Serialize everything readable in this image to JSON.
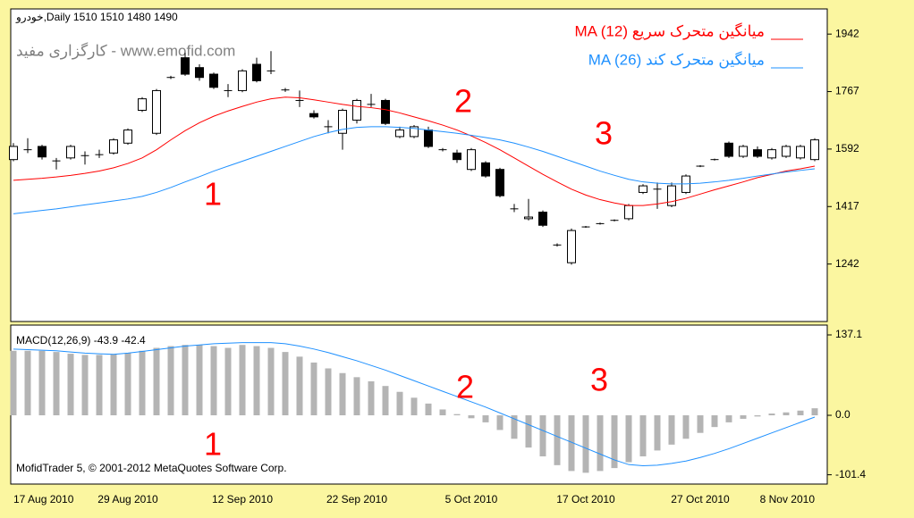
{
  "chart_data": [
    {
      "type": "candlestick",
      "header": "خودرو,Daily  1510 1510 1480 1490",
      "watermark": "کارگزاری مفید - www.emofid.com",
      "categories": [
        "17 Aug 2010",
        null,
        null,
        null,
        null,
        null,
        null,
        null,
        "29 Aug 2010",
        null,
        null,
        null,
        null,
        null,
        null,
        null,
        "12 Sep 2010",
        null,
        null,
        null,
        null,
        null,
        null,
        null,
        "22 Sep 2010",
        null,
        null,
        null,
        null,
        null,
        null,
        null,
        "5 Oct 2010",
        null,
        null,
        null,
        null,
        null,
        null,
        null,
        "17 Oct 2010",
        null,
        null,
        null,
        null,
        null,
        null,
        null,
        "27 Oct 2010",
        null,
        null,
        null,
        null,
        null,
        null,
        null,
        "8 Nov 2010"
      ],
      "open": [
        1560,
        1590,
        1600,
        1556,
        1565,
        1572,
        1575,
        1580,
        1610,
        1710,
        1640,
        1810,
        1870,
        1840,
        1820,
        1770,
        1770,
        1850,
        1830,
        1772,
        1740,
        1700,
        1660,
        1640,
        1680,
        1728,
        1740,
        1630,
        1630,
        1650,
        1590,
        1580,
        1530,
        1550,
        1530,
        1410,
        1380,
        1400,
        1300,
        1246,
        1355,
        1365,
        1375,
        1380,
        1460,
        1470,
        1420,
        1460,
        1540,
        1560,
        1610,
        1570,
        1590,
        1565,
        1570,
        1565,
        1560
      ],
      "high": [
        1610,
        1625,
        1605,
        1565,
        1605,
        1585,
        1590,
        1625,
        1655,
        1750,
        1775,
        1815,
        1885,
        1850,
        1825,
        1790,
        1835,
        1870,
        1890,
        1778,
        1770,
        1710,
        1680,
        1715,
        1745,
        1760,
        1745,
        1660,
        1665,
        1660,
        1595,
        1590,
        1595,
        1555,
        1535,
        1425,
        1440,
        1405,
        1305,
        1350,
        1358,
        1368,
        1378,
        1425,
        1485,
        1490,
        1490,
        1515,
        1543,
        1563,
        1615,
        1605,
        1600,
        1595,
        1605,
        1605,
        1625
      ],
      "low": [
        1555,
        1580,
        1560,
        1530,
        1560,
        1545,
        1565,
        1575,
        1605,
        1705,
        1635,
        1805,
        1815,
        1800,
        1775,
        1750,
        1765,
        1795,
        1820,
        1766,
        1720,
        1685,
        1640,
        1590,
        1670,
        1720,
        1665,
        1625,
        1625,
        1595,
        1585,
        1550,
        1525,
        1505,
        1445,
        1400,
        1375,
        1355,
        1295,
        1240,
        1352,
        1362,
        1372,
        1375,
        1455,
        1410,
        1415,
        1455,
        1537,
        1557,
        1565,
        1565,
        1565,
        1560,
        1565,
        1560,
        1555
      ],
      "close": [
        1600,
        1588,
        1568,
        1554,
        1600,
        1570,
        1577,
        1620,
        1650,
        1745,
        1770,
        1810,
        1820,
        1810,
        1780,
        1772,
        1830,
        1800,
        1832,
        1772,
        1742,
        1690,
        1662,
        1710,
        1740,
        1732,
        1670,
        1650,
        1660,
        1600,
        1590,
        1560,
        1590,
        1510,
        1450,
        1410,
        1385,
        1360,
        1300,
        1344,
        1355,
        1365,
        1375,
        1420,
        1480,
        1472,
        1480,
        1510,
        1540,
        1560,
        1570,
        1600,
        1570,
        1590,
        1600,
        1600,
        1620
      ],
      "series": [
        {
          "name": "MA (12) میانگین متحرک سریع",
          "color": "#ff0000",
          "values": [
            1497,
            1500,
            1503,
            1507,
            1512,
            1518,
            1525,
            1535,
            1548,
            1565,
            1590,
            1620,
            1648,
            1672,
            1692,
            1708,
            1722,
            1735,
            1745,
            1750,
            1748,
            1742,
            1735,
            1728,
            1722,
            1718,
            1712,
            1702,
            1690,
            1678,
            1665,
            1650,
            1632,
            1612,
            1590,
            1565,
            1540,
            1515,
            1492,
            1470,
            1452,
            1438,
            1428,
            1420,
            1420,
            1425,
            1432,
            1442,
            1455,
            1468,
            1480,
            1492,
            1505,
            1515,
            1525,
            1532,
            1540
          ]
        },
        {
          "name": "MA (26) میانگین متحرک کند",
          "color": "#1e90ff",
          "values": [
            1395,
            1400,
            1405,
            1410,
            1416,
            1422,
            1428,
            1434,
            1440,
            1448,
            1460,
            1475,
            1492,
            1508,
            1525,
            1540,
            1555,
            1570,
            1585,
            1600,
            1615,
            1630,
            1642,
            1652,
            1658,
            1660,
            1660,
            1658,
            1655,
            1650,
            1645,
            1640,
            1634,
            1627,
            1620,
            1610,
            1598,
            1585,
            1570,
            1555,
            1540,
            1525,
            1512,
            1500,
            1492,
            1488,
            1486,
            1486,
            1488,
            1492,
            1497,
            1503,
            1510,
            1516,
            1522,
            1527,
            1532
          ]
        }
      ],
      "annotations": [
        "1",
        "2",
        "3"
      ],
      "ylim": [
        1067,
        2018.6
      ],
      "yticks": [
        1242,
        1417,
        1592,
        1767,
        1942
      ]
    },
    {
      "type": "macd",
      "title": "MACD(12,26,9) -43.9 -42.4",
      "footer": "MofidTrader 5, © 2001-2012 MetaQuotes Software Corp.",
      "histogram": {
        "color": "#b4b4b4",
        "values": [
          110,
          110,
          110,
          108,
          105,
          103,
          103,
          104,
          106,
          110,
          115,
          118,
          120,
          120,
          118,
          115,
          120,
          118,
          115,
          108,
          100,
          90,
          80,
          72,
          65,
          58,
          50,
          40,
          30,
          20,
          10,
          2,
          -5,
          -12,
          -25,
          -40,
          -55,
          -70,
          -85,
          -95,
          -98,
          -95,
          -90,
          -80,
          -70,
          -60,
          -50,
          -40,
          -30,
          -20,
          -12,
          -6,
          -2,
          3,
          5,
          8,
          12
        ]
      },
      "signal": {
        "color": "#1e90ff",
        "values": [
          113,
          112,
          111,
          110,
          108,
          106,
          105,
          104,
          106,
          109,
          112,
          115,
          118,
          120,
          122,
          123,
          124,
          124,
          124,
          122,
          118,
          113,
          107,
          100,
          93,
          85,
          77,
          68,
          59,
          50,
          41,
          32,
          23,
          14,
          4,
          -6,
          -16,
          -26,
          -36,
          -46,
          -56,
          -66,
          -76,
          -84,
          -86,
          -85,
          -82,
          -78,
          -72,
          -65,
          -57,
          -48,
          -39,
          -30,
          -21,
          -12,
          -3
        ]
      },
      "annotations": [
        "1",
        "2",
        "3"
      ],
      "ylim": [
        -114.2,
        150.8
      ],
      "yticks": [
        -101.4,
        {
          "value": 0,
          "label": "0.0"
        },
        137.1
      ]
    }
  ]
}
